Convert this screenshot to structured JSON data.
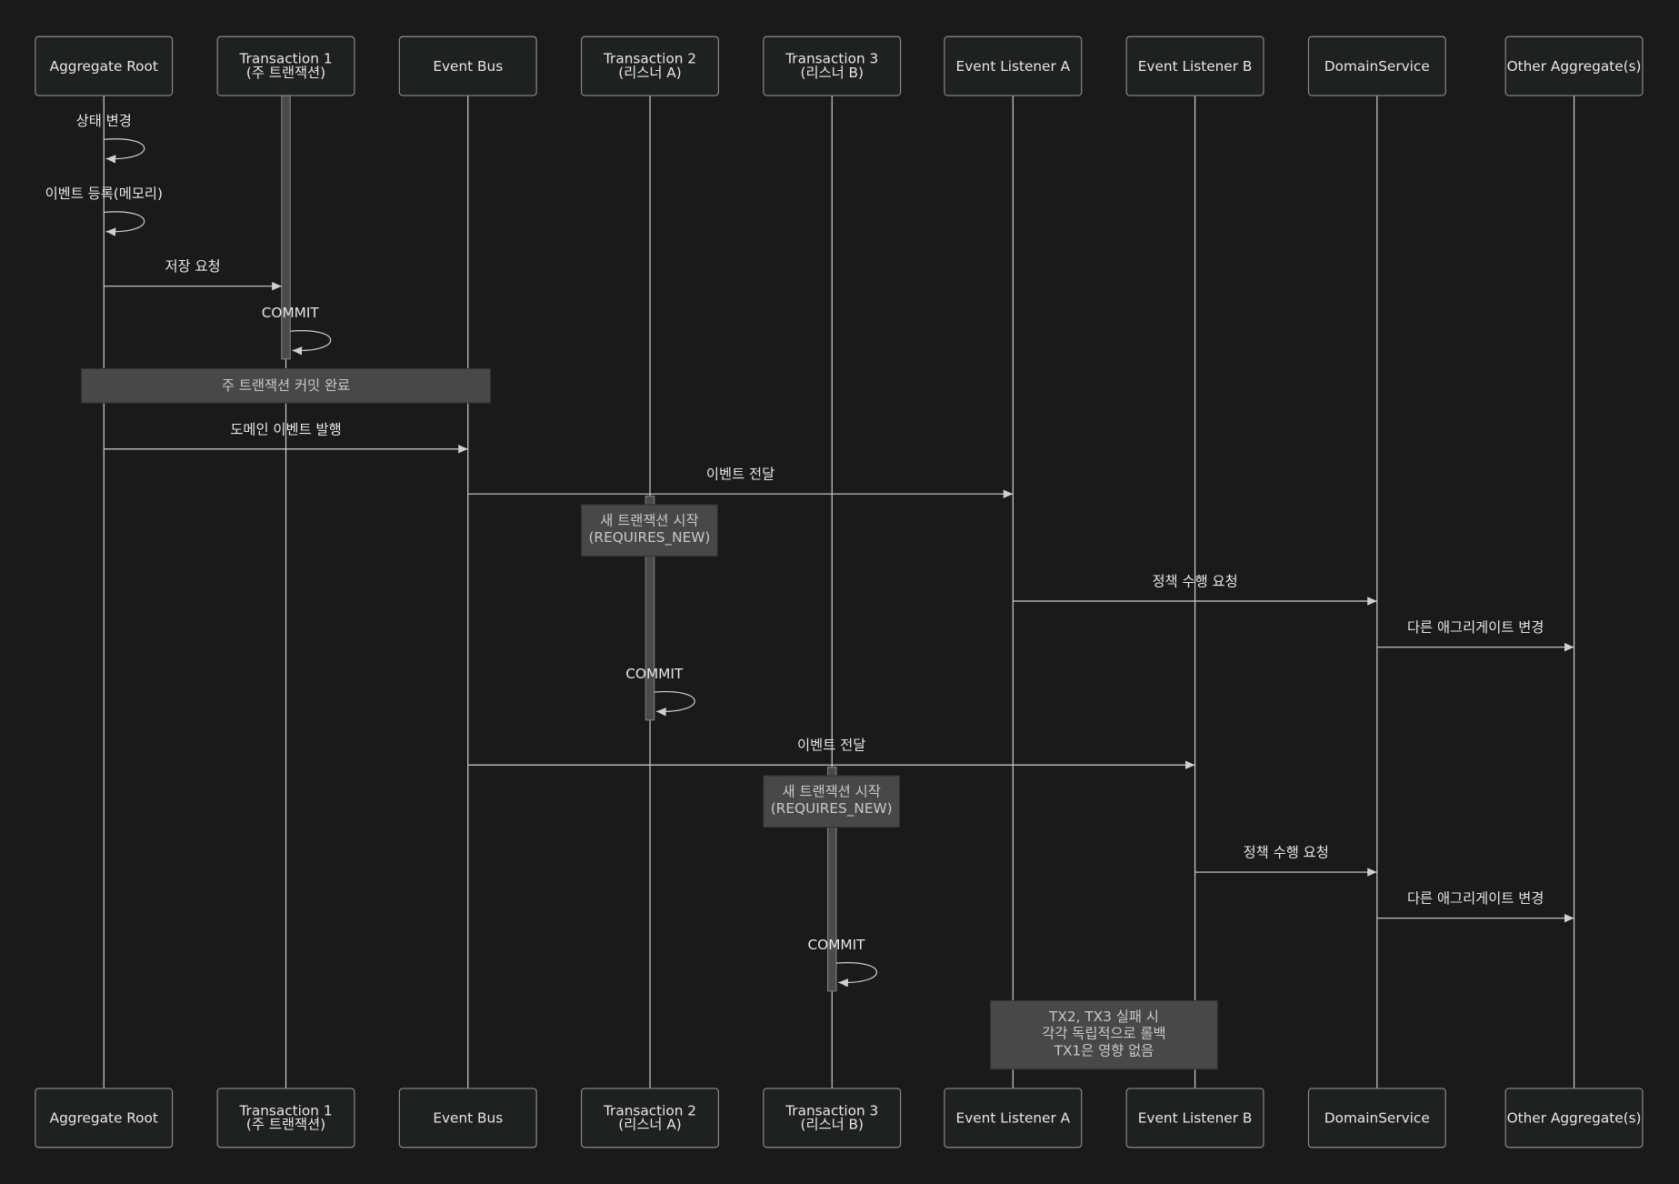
{
  "participants": [
    {
      "id": "ar",
      "lines": [
        "Aggregate Root"
      ]
    },
    {
      "id": "tx1",
      "lines": [
        "Transaction 1",
        "(주 트랜잭션)"
      ]
    },
    {
      "id": "bus",
      "lines": [
        "Event Bus"
      ]
    },
    {
      "id": "tx2",
      "lines": [
        "Transaction 2",
        "(리스너 A)"
      ]
    },
    {
      "id": "tx3",
      "lines": [
        "Transaction 3",
        "(리스너 B)"
      ]
    },
    {
      "id": "la",
      "lines": [
        "Event Listener A"
      ]
    },
    {
      "id": "lb",
      "lines": [
        "Event Listener B"
      ]
    },
    {
      "id": "ds",
      "lines": [
        "DomainService"
      ]
    },
    {
      "id": "oa",
      "lines": [
        "Other Aggregate(s)"
      ]
    }
  ],
  "steps": [
    {
      "type": "self",
      "from": "ar",
      "label": "상태 변경"
    },
    {
      "type": "self",
      "from": "ar",
      "label": "이벤트 등록(메모리)"
    },
    {
      "type": "msg",
      "from": "ar",
      "to": "tx1",
      "label": "저장 요청"
    },
    {
      "type": "self",
      "from": "tx1",
      "label": "COMMIT"
    },
    {
      "type": "note",
      "over": [
        "ar",
        "bus"
      ],
      "lines": [
        "주 트랜잭션 커밋 완료"
      ]
    },
    {
      "type": "msg",
      "from": "ar",
      "to": "bus",
      "label": "도메인 이벤트 발행"
    },
    {
      "type": "msg",
      "from": "bus",
      "to": "la",
      "label": "이벤트 전달"
    },
    {
      "type": "note",
      "over": [
        "tx2"
      ],
      "lines": [
        "새 트랜잭션 시작",
        "(REQUIRES_NEW)"
      ]
    },
    {
      "type": "msg",
      "from": "la",
      "to": "ds",
      "label": "정책 수행 요청"
    },
    {
      "type": "msg",
      "from": "ds",
      "to": "oa",
      "label": "다른 애그리게이트 변경"
    },
    {
      "type": "self",
      "from": "tx2",
      "label": "COMMIT"
    },
    {
      "type": "msg",
      "from": "bus",
      "to": "lb",
      "label": "이벤트 전달"
    },
    {
      "type": "note",
      "over": [
        "tx3"
      ],
      "lines": [
        "새 트랜잭션 시작",
        "(REQUIRES_NEW)"
      ]
    },
    {
      "type": "msg",
      "from": "lb",
      "to": "ds",
      "label": "정책 수행 요청"
    },
    {
      "type": "msg",
      "from": "ds",
      "to": "oa",
      "label": "다른 애그리게이트 변경"
    },
    {
      "type": "self",
      "from": "tx3",
      "label": "COMMIT"
    },
    {
      "type": "note",
      "over": [
        "la",
        "lb"
      ],
      "lines": [
        "TX2, TX3 실패 시",
        "각각 독립적으로 롤백",
        "TX1은 영향 없음"
      ]
    }
  ],
  "activations": [
    "tx1",
    "tx2",
    "tx3"
  ],
  "colors": {
    "background": "#1a1a1a",
    "box": "#1f2020",
    "line": "#d0d0d0",
    "note": "#474847"
  }
}
